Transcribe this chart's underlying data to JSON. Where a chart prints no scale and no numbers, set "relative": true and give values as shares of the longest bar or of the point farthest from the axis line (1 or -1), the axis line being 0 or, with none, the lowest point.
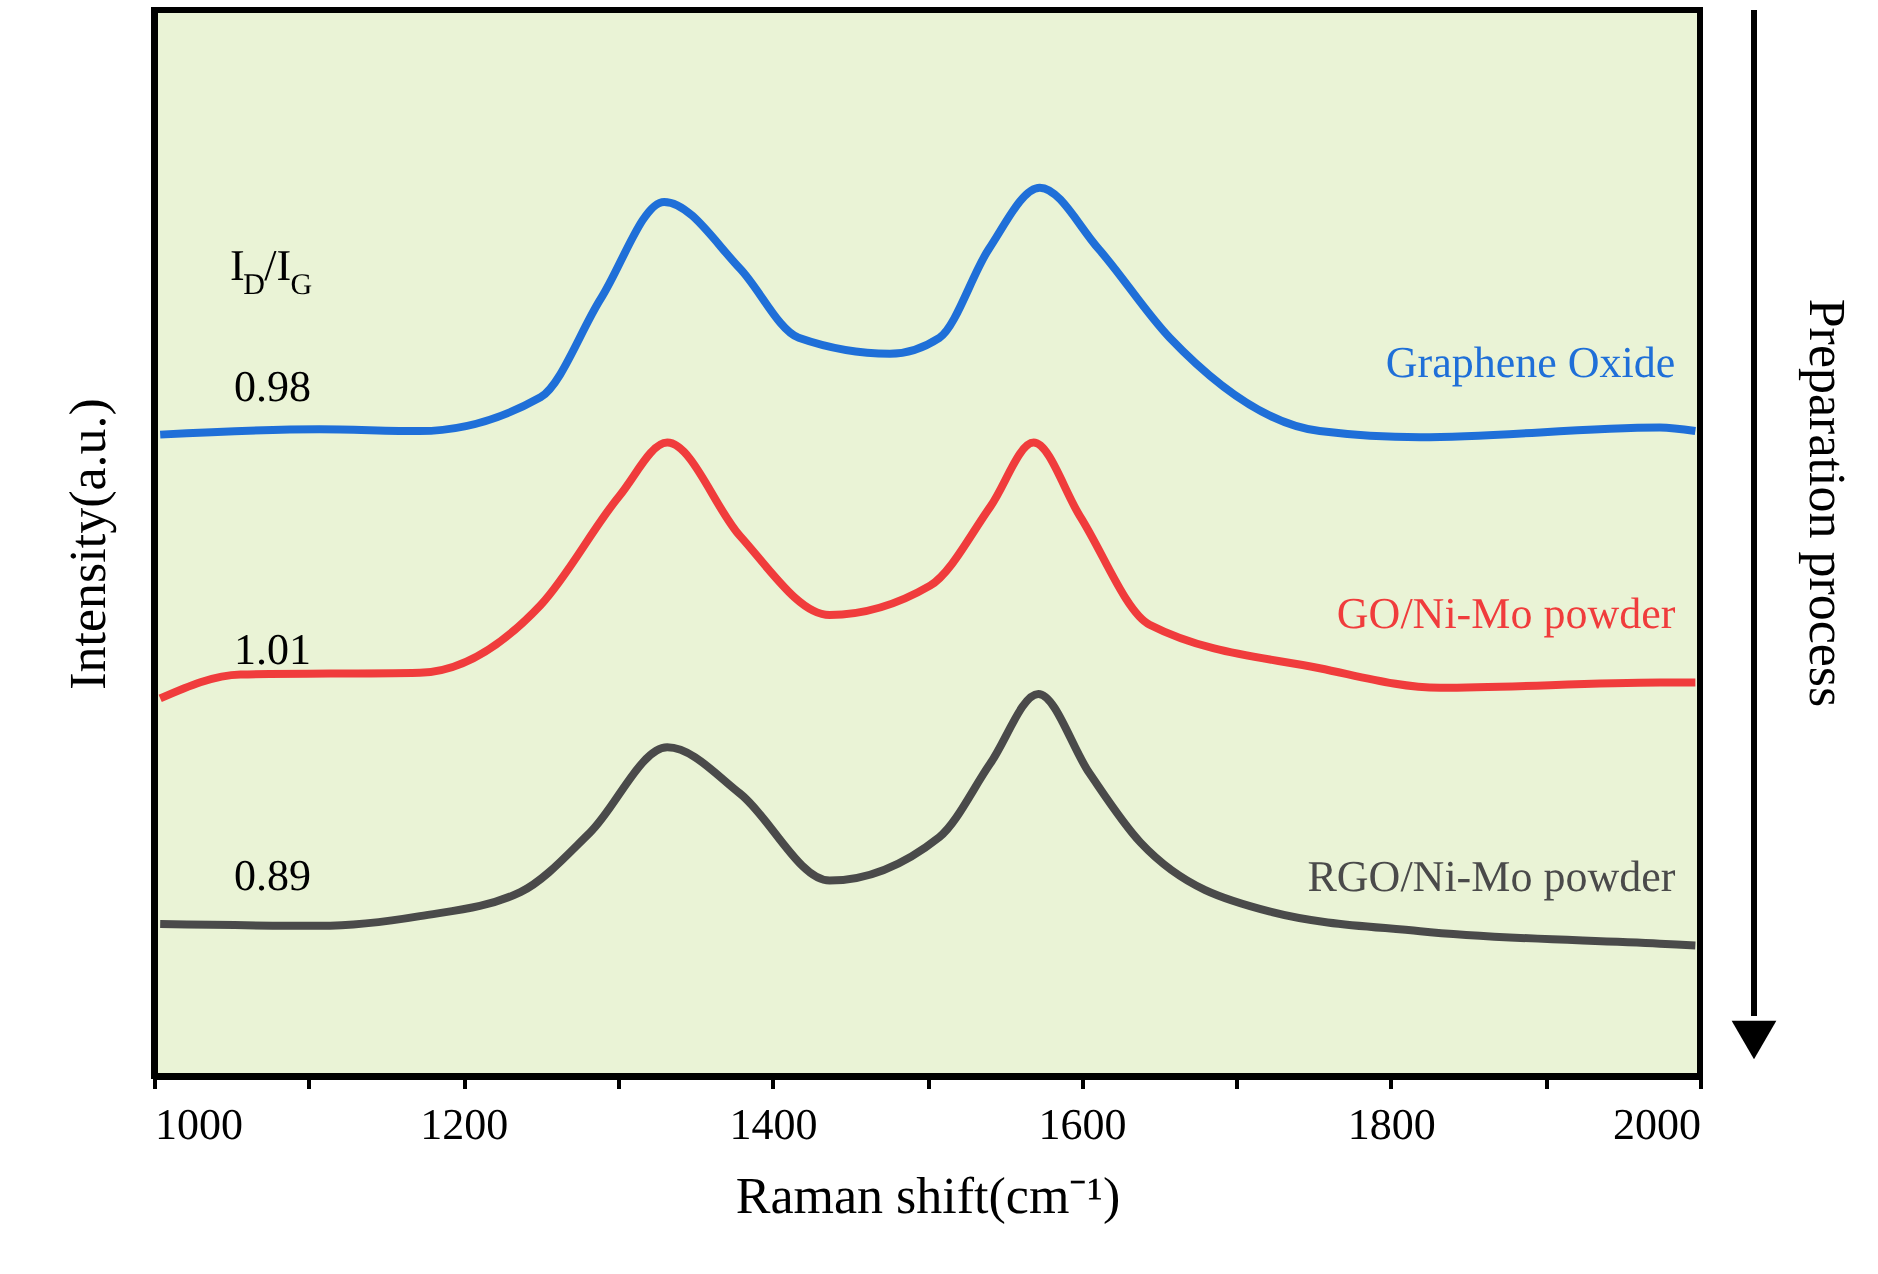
{
  "chart_data": {
    "type": "line",
    "relative": true,
    "xlabel": "Raman shift(cm⁻¹)",
    "ylabel": "Intensity(a.u.)",
    "xlim": [
      1000,
      2000
    ],
    "xticks": [
      1000,
      {
        "value": 1100,
        "label": null
      },
      1200,
      {
        "value": 1300,
        "label": null
      },
      1400,
      {
        "value": 1500,
        "label": null
      },
      1600,
      {
        "value": 1700,
        "label": null
      },
      1800,
      {
        "value": 1900,
        "label": null
      },
      2000
    ],
    "grid": false,
    "marker": "none",
    "line_style": "solid",
    "series": [
      {
        "name": "Graphene Oxide",
        "color": "#1f6fd8",
        "x": [
          1004,
          1107,
          1172,
          1250,
          1289,
          1330,
          1379,
          1417,
          1476,
          1508,
          1540,
          1573,
          1611,
          1657,
          1754,
          1819,
          1974,
          1997
        ],
        "values": [
          0.722,
          0.728,
          0.726,
          0.764,
          0.875,
          0.984,
          0.909,
          0.831,
          0.813,
          0.831,
          0.931,
          1.0,
          0.931,
          0.831,
          0.726,
          0.719,
          0.73,
          0.726
        ]
      },
      {
        "name": "GO/Ni-Mo powder",
        "color": "#f03c3c",
        "x": [
          1004,
          1056,
          1172,
          1250,
          1301,
          1332,
          1379,
          1437,
          1502,
          1541,
          1569,
          1599,
          1644,
          1754,
          1832,
          1974,
          1997
        ],
        "values": [
          0.425,
          0.452,
          0.454,
          0.53,
          0.653,
          0.713,
          0.608,
          0.519,
          0.552,
          0.641,
          0.713,
          0.63,
          0.508,
          0.459,
          0.437,
          0.443,
          0.443
        ]
      },
      {
        "name": "RGO/Ni-Mo powder",
        "color": "#4a4a4a",
        "x": [
          1004,
          1107,
          1172,
          1237,
          1282,
          1332,
          1379,
          1437,
          1508,
          1541,
          1572,
          1605,
          1638,
          1722,
          1819,
          1974,
          1997
        ],
        "values": [
          0.171,
          0.169,
          0.18,
          0.207,
          0.274,
          0.37,
          0.318,
          0.22,
          0.269,
          0.352,
          0.43,
          0.341,
          0.263,
          0.185,
          0.163,
          0.149,
          0.147
        ]
      }
    ],
    "annotations": [
      "I$_{D}$/I$_{G}$",
      "0.98",
      "1.01",
      "0.89",
      "Preparation process"
    ]
  }
}
